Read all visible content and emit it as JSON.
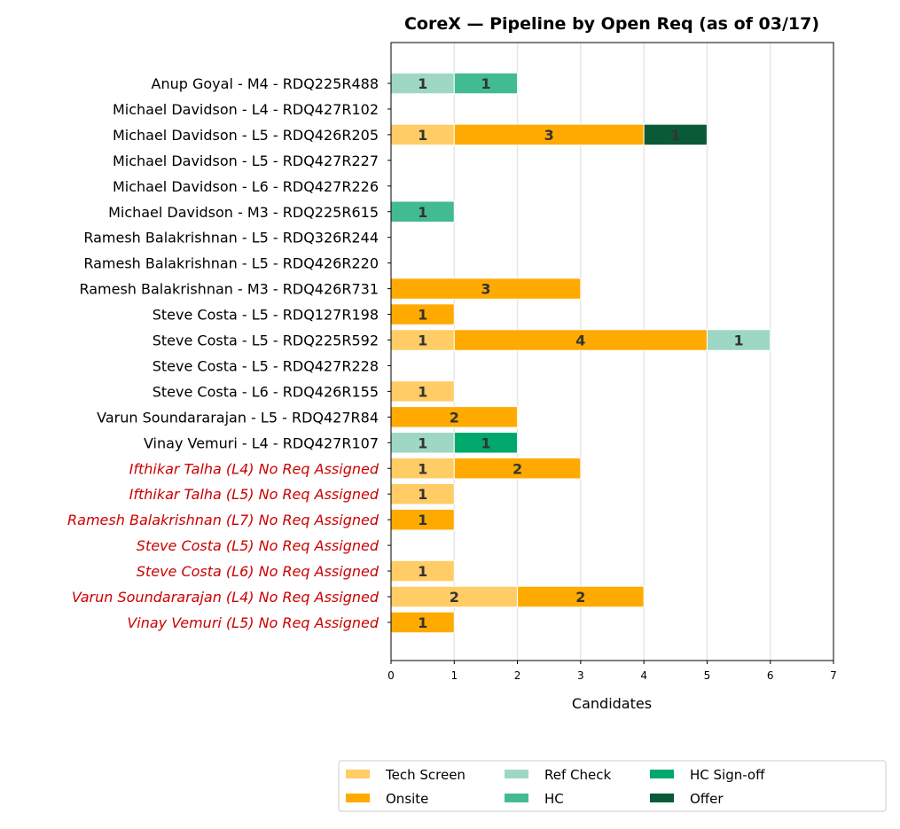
{
  "chart_data": {
    "type": "bar",
    "orientation": "horizontal",
    "stacked": true,
    "title": "CoreX — Pipeline by Open Req (as of 03/17)",
    "xlabel": "Candidates",
    "ylabel": "",
    "xlim": [
      0,
      7
    ],
    "xticks": [
      0,
      1,
      2,
      3,
      4,
      5,
      6,
      7
    ],
    "grid": "vertical",
    "legend_placement": "bottom-right, below plot",
    "categories": [
      "Anup Goyal - M4 - RDQ225R488",
      "Michael Davidson - L4 - RDQ427R102",
      "Michael Davidson - L5 - RDQ426R205",
      "Michael Davidson - L5 - RDQ427R227",
      "Michael Davidson - L6 - RDQ427R226",
      "Michael Davidson - M3 - RDQ225R615",
      "Ramesh Balakrishnan - L5 - RDQ326R244",
      "Ramesh Balakrishnan - L5 - RDQ426R220",
      "Ramesh Balakrishnan - M3 - RDQ426R731",
      "Steve Costa - L5 - RDQ127R198",
      "Steve Costa - L5 - RDQ225R592",
      "Steve Costa - L5 - RDQ427R228",
      "Steve Costa - L6 - RDQ426R155",
      "Varun Soundararajan - L5 - RDQ427R84",
      "Vinay Vemuri - L4 - RDQ427R107",
      "Ifthikar Talha (L4) No Req Assigned",
      "Ifthikar Talha (L5) No Req Assigned",
      "Ramesh Balakrishnan (L7) No Req Assigned",
      "Steve Costa (L5) No Req Assigned",
      "Steve Costa (L6) No Req Assigned",
      "Varun Soundararajan (L4) No Req Assigned",
      "Vinay Vemuri (L5) No Req Assigned"
    ],
    "no_req_flags": [
      false,
      false,
      false,
      false,
      false,
      false,
      false,
      false,
      false,
      false,
      false,
      false,
      false,
      false,
      false,
      true,
      true,
      true,
      true,
      true,
      true,
      true
    ],
    "no_req_color": "#cc0000",
    "series": [
      {
        "name": "Tech Screen",
        "color": "#ffcc66",
        "values": [
          0,
          0,
          1,
          0,
          0,
          0,
          0,
          0,
          0,
          0,
          1,
          0,
          1,
          0,
          0,
          1,
          1,
          0,
          0,
          1,
          2,
          0
        ]
      },
      {
        "name": "Onsite",
        "color": "#ffaa00",
        "values": [
          0,
          0,
          3,
          0,
          0,
          0,
          0,
          0,
          3,
          1,
          4,
          0,
          0,
          2,
          0,
          2,
          0,
          1,
          0,
          0,
          2,
          1
        ]
      },
      {
        "name": "Ref Check",
        "color": "#9ed8c4",
        "values": [
          1,
          0,
          0,
          0,
          0,
          0,
          0,
          0,
          0,
          0,
          1,
          0,
          0,
          0,
          1,
          0,
          0,
          0,
          0,
          0,
          0,
          0
        ]
      },
      {
        "name": "HC",
        "color": "#42bb92",
        "values": [
          1,
          0,
          0,
          0,
          0,
          1,
          0,
          0,
          0,
          0,
          0,
          0,
          0,
          0,
          0,
          0,
          0,
          0,
          0,
          0,
          0,
          0
        ]
      },
      {
        "name": "HC Sign-off",
        "color": "#00a86b",
        "values": [
          0,
          0,
          0,
          0,
          0,
          0,
          0,
          0,
          0,
          0,
          0,
          0,
          0,
          0,
          1,
          0,
          0,
          0,
          0,
          0,
          0,
          0
        ]
      },
      {
        "name": "Offer",
        "color": "#0b5a37",
        "values": [
          0,
          0,
          1,
          0,
          0,
          0,
          0,
          0,
          0,
          0,
          0,
          0,
          0,
          0,
          0,
          0,
          0,
          0,
          0,
          0,
          0,
          0
        ]
      }
    ]
  }
}
